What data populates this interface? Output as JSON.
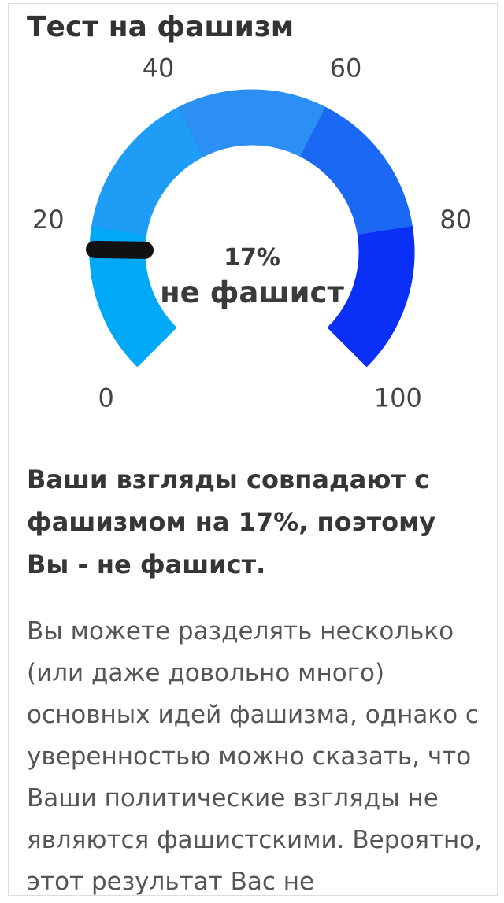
{
  "page": {
    "title": "Тест на фашизм"
  },
  "gauge": {
    "value": 17,
    "min": 0,
    "max": 100,
    "percent_label": "17%",
    "verdict_label": "не фашист",
    "tick_labels": [
      "0",
      "20",
      "40",
      "60",
      "80",
      "100"
    ],
    "segment_colors": [
      "#00a8f8",
      "#1f9cf6",
      "#2b8ff3",
      "#1a68f4",
      "#0a2ff6"
    ],
    "needle_color": "#111111"
  },
  "result": {
    "summary": "Ваши взгляды совпадают с фашизмом на 17%, поэтому Вы - не фашист.",
    "description": "Вы можете разделять несколько (или даже довольно много) основных идей фашизма, однако с уверенностью можно сказать, что Ваши политические взгляды не являются фашистскими. Вероятно, этот результат Вас не"
  }
}
